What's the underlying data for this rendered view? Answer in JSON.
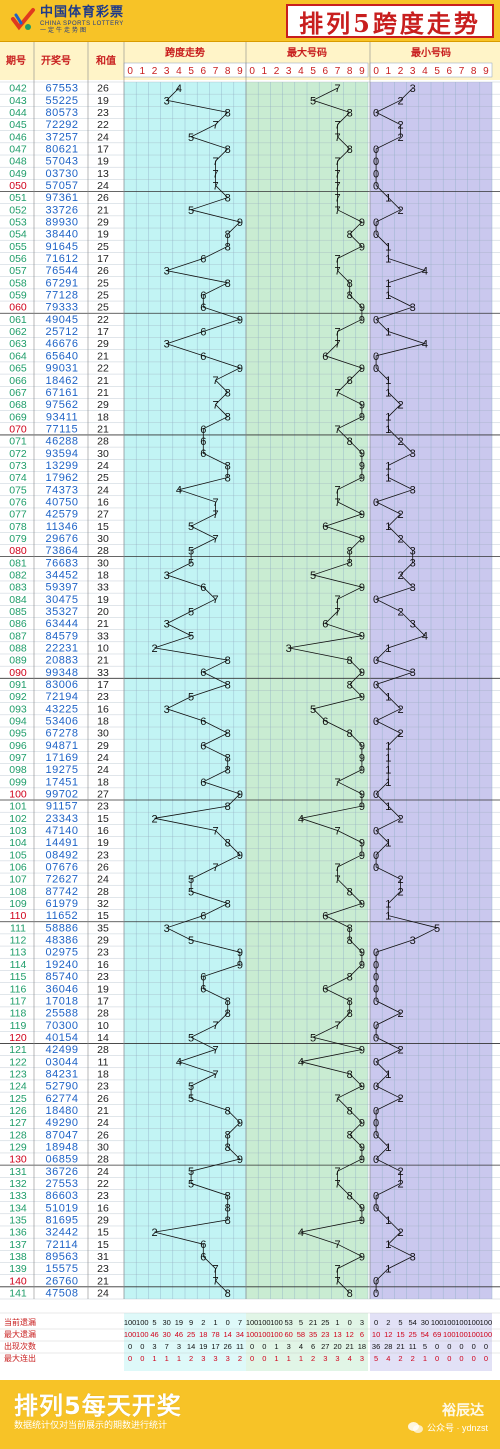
{
  "header": {
    "logo_cn": "中国体育彩票",
    "logo_en": "CHINA SPORTS LOTTERY",
    "logo_slogan": "一定牛走势图",
    "title": "排列5跨度走势"
  },
  "columns": {
    "issue": "期号",
    "draw": "开奖号",
    "sum": "和值",
    "groups": [
      "跨度走势",
      "最大号码",
      "最小号码"
    ],
    "digits": [
      "0",
      "1",
      "2",
      "3",
      "4",
      "5",
      "6",
      "7",
      "8",
      "9"
    ]
  },
  "stats": {
    "labels": [
      "当前遗漏",
      "最大遗漏",
      "出现次数",
      "最大连出"
    ],
    "rows": [
      [
        "100",
        "100",
        "5",
        "30",
        "19",
        "9",
        "2",
        "1",
        "0",
        "7",
        "100",
        "100",
        "100",
        "53",
        "5",
        "21",
        "25",
        "1",
        "0",
        "3",
        "0",
        "2",
        "5",
        "54",
        "30",
        "100",
        "100",
        "100",
        "100",
        "100"
      ],
      [
        "100",
        "100",
        "46",
        "30",
        "46",
        "25",
        "18",
        "78",
        "14",
        "34",
        "100",
        "100",
        "100",
        "60",
        "58",
        "35",
        "23",
        "13",
        "12",
        "6",
        "10",
        "12",
        "15",
        "25",
        "54",
        "69",
        "100",
        "100",
        "100",
        "100"
      ],
      [
        "0",
        "0",
        "3",
        "7",
        "3",
        "14",
        "19",
        "17",
        "26",
        "11",
        "0",
        "0",
        "1",
        "3",
        "4",
        "6",
        "27",
        "20",
        "21",
        "18",
        "36",
        "28",
        "21",
        "11",
        "5",
        "0",
        "0",
        "0",
        "0",
        "0"
      ],
      [
        "0",
        "0",
        "1",
        "1",
        "1",
        "2",
        "3",
        "3",
        "3",
        "2",
        "0",
        "0",
        "1",
        "1",
        "1",
        "2",
        "3",
        "3",
        "4",
        "3",
        "5",
        "4",
        "2",
        "2",
        "1",
        "0",
        "0",
        "0",
        "0",
        "0"
      ]
    ]
  },
  "footer": {
    "main": "排列5每天开奖",
    "note": "数据统计仅对当前展示的期数进行统计",
    "brand": "裕辰达",
    "wechat": "公众号 · ydnzst"
  },
  "colors": {
    "header": "#f7c327",
    "title_red": "#c81e1e",
    "span_bg": "#c2f4f4",
    "max_bg": "#c9ecd2",
    "min_bg": "#cac8ee",
    "issue_green": "#1f9d6a",
    "draw_blue": "#1e63c7",
    "line": "#111111"
  },
  "chart_data": {
    "type": "line",
    "series": [
      {
        "name": "跨度走势"
      },
      {
        "name": "最大号码"
      },
      {
        "name": "最小号码"
      }
    ],
    "issues": [
      "042",
      "043",
      "044",
      "045",
      "046",
      "047",
      "048",
      "049",
      "050",
      "051",
      "052",
      "053",
      "054",
      "055",
      "056",
      "057",
      "058",
      "059",
      "060",
      "061",
      "062",
      "063",
      "064",
      "065",
      "066",
      "067",
      "068",
      "069",
      "070",
      "071",
      "072",
      "073",
      "074",
      "075",
      "076",
      "077",
      "078",
      "079",
      "080",
      "081",
      "082",
      "083",
      "084",
      "085",
      "086",
      "087",
      "088",
      "089",
      "090",
      "091",
      "092",
      "093",
      "094",
      "095",
      "096",
      "097",
      "098",
      "099",
      "100",
      "101",
      "102",
      "103",
      "104",
      "105",
      "106",
      "107",
      "108",
      "109",
      "110",
      "111",
      "112",
      "113",
      "114",
      "115",
      "116",
      "117",
      "118",
      "119",
      "120",
      "121",
      "122",
      "123",
      "124",
      "125",
      "126",
      "127",
      "128",
      "129",
      "130",
      "131",
      "132",
      "133",
      "134",
      "135",
      "136",
      "137",
      "138",
      "139",
      "140",
      "141"
    ],
    "draws": [
      "67553",
      "55225",
      "80573",
      "72292",
      "37257",
      "80621",
      "57043",
      "03730",
      "57057",
      "97361",
      "33726",
      "89930",
      "38440",
      "91645",
      "71612",
      "76544",
      "67291",
      "77128",
      "79333",
      "49045",
      "25712",
      "46676",
      "65640",
      "99031",
      "18462",
      "67161",
      "97562",
      "93411",
      "77115",
      "46288",
      "93594",
      "13299",
      "17962",
      "74373",
      "40750",
      "42579",
      "11346",
      "29676",
      "73864",
      "76683",
      "34452",
      "59397",
      "30475",
      "35327",
      "63444",
      "84579",
      "22231",
      "20883",
      "99348",
      "83006",
      "72194",
      "43225",
      "53406",
      "67278",
      "94871",
      "17169",
      "19275",
      "17451",
      "99702",
      "91157",
      "23343",
      "47140",
      "14491",
      "08492",
      "07676",
      "72627",
      "87742",
      "61979",
      "11652",
      "58886",
      "48386",
      "02975",
      "19240",
      "85740",
      "36046",
      "17018",
      "25588",
      "70300",
      "40154",
      "42499",
      "03044",
      "84231",
      "52790",
      "62774",
      "18480",
      "49290",
      "87047",
      "18948",
      "06859",
      "36726",
      "27553",
      "86603",
      "51019",
      "81695",
      "32442",
      "72114",
      "89563",
      "15575",
      "26760",
      "47508"
    ],
    "sums": [
      "26",
      "19",
      "23",
      "22",
      "24",
      "17",
      "19",
      "13",
      "24",
      "26",
      "21",
      "29",
      "19",
      "25",
      "17",
      "26",
      "25",
      "25",
      "25",
      "22",
      "17",
      "29",
      "21",
      "22",
      "21",
      "21",
      "29",
      "18",
      "21",
      "28",
      "30",
      "24",
      "25",
      "24",
      "16",
      "27",
      "15",
      "30",
      "28",
      "30",
      "18",
      "33",
      "19",
      "20",
      "21",
      "33",
      "10",
      "21",
      "33",
      "17",
      "23",
      "16",
      "18",
      "30",
      "29",
      "24",
      "24",
      "18",
      "27",
      "23",
      "15",
      "16",
      "19",
      "23",
      "26",
      "24",
      "28",
      "32",
      "15",
      "35",
      "29",
      "23",
      "16",
      "23",
      "19",
      "17",
      "28",
      "10",
      "14",
      "28",
      "11",
      "18",
      "23",
      "26",
      "21",
      "24",
      "26",
      "30",
      "28",
      "24",
      "22",
      "23",
      "16",
      "29",
      "15",
      "15",
      "31",
      "23",
      "21",
      "24"
    ],
    "span": [
      4,
      3,
      8,
      7,
      5,
      8,
      7,
      7,
      7,
      8,
      5,
      9,
      8,
      8,
      6,
      3,
      8,
      6,
      6,
      9,
      6,
      3,
      6,
      9,
      7,
      8,
      7,
      8,
      6,
      6,
      6,
      8,
      8,
      4,
      7,
      7,
      5,
      7,
      5,
      5,
      3,
      6,
      7,
      5,
      3,
      5,
      2,
      8,
      6,
      8,
      5,
      3,
      6,
      8,
      6,
      8,
      8,
      6,
      9,
      8,
      2,
      7,
      8,
      9,
      7,
      5,
      5,
      8,
      6,
      3,
      5,
      9,
      9,
      6,
      6,
      8,
      8,
      7,
      5,
      7,
      4,
      7,
      5,
      5,
      8,
      9,
      8,
      8,
      9,
      5,
      5,
      8,
      8,
      8,
      2,
      6,
      6,
      7,
      7,
      8
    ],
    "max_digit": [
      7,
      5,
      8,
      7,
      7,
      8,
      7,
      7,
      7,
      7,
      7,
      9,
      8,
      9,
      7,
      7,
      8,
      8,
      9,
      9,
      7,
      7,
      6,
      9,
      8,
      7,
      9,
      9,
      7,
      8,
      9,
      9,
      9,
      7,
      7,
      9,
      6,
      9,
      8,
      8,
      5,
      9,
      7,
      7,
      6,
      9,
      3,
      8,
      9,
      8,
      9,
      5,
      6,
      8,
      9,
      9,
      9,
      7,
      9,
      9,
      4,
      7,
      9,
      9,
      7,
      7,
      8,
      9,
      6,
      8,
      8,
      9,
      9,
      8,
      6,
      8,
      8,
      7,
      5,
      9,
      4,
      8,
      9,
      7,
      8,
      9,
      8,
      9,
      9,
      7,
      7,
      8,
      9,
      9,
      4,
      7,
      9,
      7,
      7,
      8
    ],
    "min_digit": [
      3,
      2,
      0,
      2,
      2,
      0,
      0,
      0,
      0,
      1,
      2,
      0,
      0,
      1,
      1,
      4,
      1,
      1,
      3,
      0,
      1,
      4,
      0,
      0,
      1,
      1,
      2,
      1,
      1,
      2,
      3,
      1,
      1,
      3,
      0,
      2,
      1,
      2,
      3,
      3,
      2,
      3,
      0,
      2,
      3,
      4,
      1,
      0,
      3,
      0,
      1,
      2,
      0,
      2,
      1,
      1,
      1,
      1,
      0,
      1,
      2,
      0,
      1,
      0,
      0,
      2,
      2,
      1,
      1,
      5,
      3,
      0,
      0,
      0,
      0,
      0,
      2,
      0,
      0,
      2,
      0,
      1,
      0,
      2,
      0,
      0,
      0,
      1,
      0,
      2,
      2,
      0,
      0,
      1,
      2,
      1,
      3,
      1,
      0,
      0
    ]
  }
}
